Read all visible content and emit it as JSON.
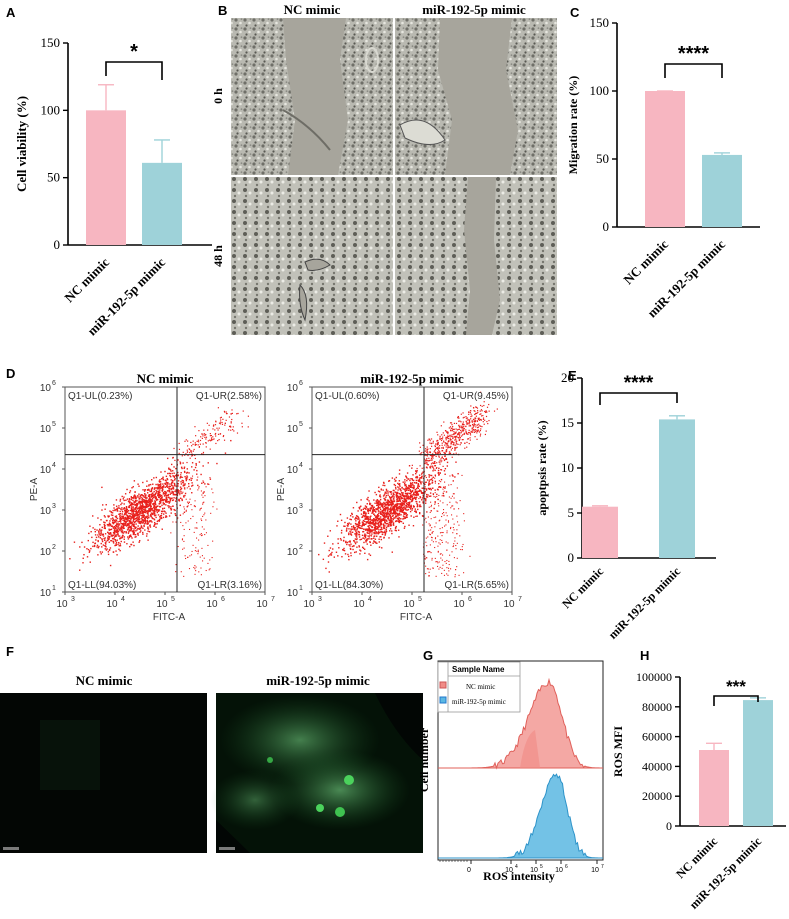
{
  "panels": {
    "A": {
      "letter": "A"
    },
    "B": {
      "letter": "B",
      "col_labels": [
        "NC mimic",
        "miR-192-5p mimic"
      ],
      "row_labels": [
        "0 h",
        "48 h"
      ]
    },
    "C": {
      "letter": "C"
    },
    "D": {
      "letter": "D"
    },
    "E": {
      "letter": "E"
    },
    "F": {
      "letter": "F",
      "col_labels": [
        "NC mimic",
        "miR-192-5p mimic"
      ]
    },
    "G": {
      "letter": "G"
    },
    "H": {
      "letter": "H"
    }
  },
  "colors": {
    "nc": "#f7b6c1",
    "mir": "#9ed2d9",
    "dot": "#e8201c",
    "hist_nc": "#f08b86",
    "hist_mir": "#5ab7e2"
  },
  "chart_data": [
    {
      "id": "A",
      "type": "bar",
      "categories": [
        "NC mimic",
        "miR-192-5p mimic"
      ],
      "values": [
        100,
        61
      ],
      "errors": [
        19,
        17
      ],
      "ylabel": "Cell viability (%)",
      "ylim": [
        0,
        150
      ],
      "yticks": [
        0,
        50,
        100,
        150
      ],
      "significance": "*"
    },
    {
      "id": "C",
      "type": "bar",
      "categories": [
        "NC mimic",
        "miR-192-5p mimic"
      ],
      "values": [
        100,
        53
      ],
      "errors": [
        0,
        1.5
      ],
      "ylabel": "Migration rate (%)",
      "ylim": [
        0,
        150
      ],
      "yticks": [
        0,
        50,
        100,
        150
      ],
      "significance": "****"
    },
    {
      "id": "D",
      "type": "scatter",
      "plots": [
        {
          "title": "NC mimic",
          "quadrants": {
            "UL": "Q1-UL(0.23%)",
            "UR": "Q1-UR(2.58%)",
            "LL": "Q1-LL(94.03%)",
            "LR": "Q1-LR(3.16%)"
          }
        },
        {
          "title": "miR-192-5p mimic",
          "quadrants": {
            "UL": "Q1-UL(0.60%)",
            "UR": "Q1-UR(9.45%)",
            "LL": "Q1-LL(84.30%)",
            "LR": "Q1-LR(5.65%)"
          }
        }
      ],
      "xlabel": "FITC-A",
      "ylabel": "PE-A",
      "xticks": [
        "10",
        "10",
        "10",
        "10",
        "10"
      ],
      "xexp": [
        "3",
        "4",
        "5",
        "6",
        "7"
      ],
      "yticks": [
        "10",
        "10",
        "10",
        "10",
        "10",
        "10"
      ],
      "yexp": [
        "1",
        "2",
        "3",
        "4",
        "5",
        "6"
      ]
    },
    {
      "id": "E",
      "type": "bar",
      "categories": [
        "NC mimic",
        "miR-192-5p mimic"
      ],
      "values": [
        5.7,
        15.4
      ],
      "errors": [
        0.1,
        0.4
      ],
      "ylabel": "apoptpsis rate (%)",
      "ylim": [
        0,
        20
      ],
      "yticks": [
        0,
        5,
        10,
        15,
        20
      ],
      "significance": "****"
    },
    {
      "id": "G",
      "type": "area",
      "legend_title": "Sample Name",
      "series": [
        {
          "name": "NC mimic"
        },
        {
          "name": "miR-192-5p mimic"
        }
      ],
      "xlabel": "ROS intensity",
      "ylabel": "Cell number",
      "xticks": [
        "0",
        "10",
        "10",
        "10",
        "10"
      ],
      "xexp": [
        "",
        "4",
        "5",
        "6",
        "7"
      ]
    },
    {
      "id": "H",
      "type": "bar",
      "categories": [
        "NC mimic",
        "miR-192-5p mimic"
      ],
      "values": [
        51000,
        84500
      ],
      "errors": [
        4500,
        1500
      ],
      "ylabel": "ROS MFI",
      "ylim": [
        0,
        100000
      ],
      "yticks": [
        0,
        20000,
        40000,
        60000,
        80000,
        100000
      ],
      "significance": "***"
    }
  ]
}
